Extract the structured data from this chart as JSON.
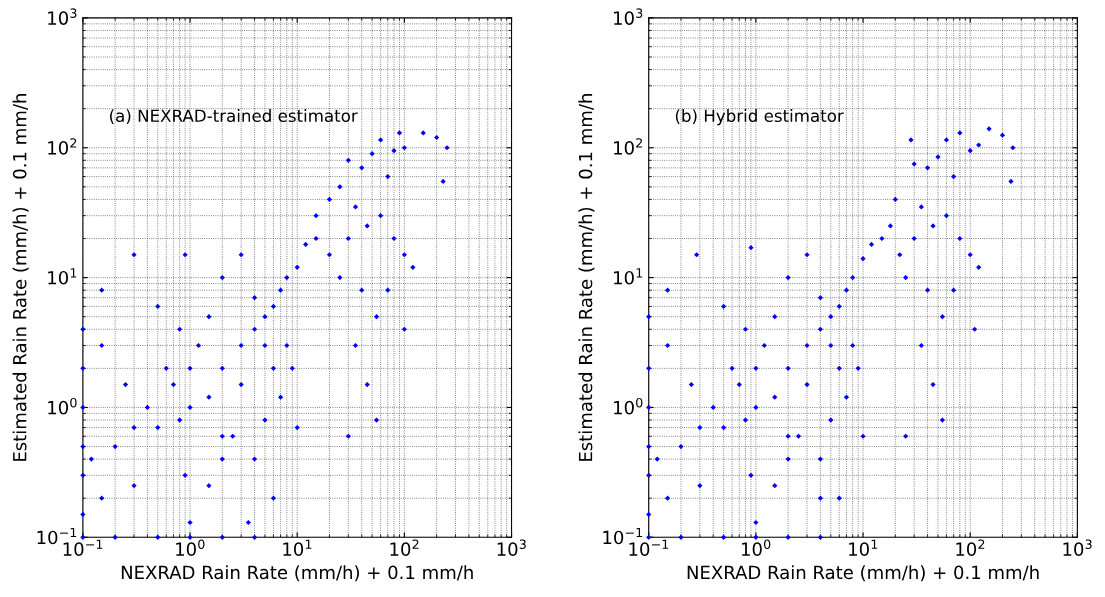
{
  "chart_data": [
    {
      "type": "scatter",
      "xlabel": "NEXRAD Rain Rate (mm/h) + 0.1 mm/h",
      "ylabel": "Estimated Rain Rate (mm/h) + 0.1 mm/h",
      "annotations": [
        "(a) NEXRAD-trained estimator"
      ],
      "log": "xy",
      "grid": true,
      "marker": "diamond",
      "xlim": [
        0.1,
        1000
      ],
      "ylim": [
        0.1,
        1000
      ],
      "xticks": [
        {
          "value": 0.1,
          "label": "10$^{−1}$"
        },
        {
          "value": 1,
          "label": "10$^{0}$"
        },
        {
          "value": 10,
          "label": "10$^{1}$"
        },
        {
          "value": 100,
          "label": "10$^{2}$"
        },
        {
          "value": 1000,
          "label": "10$^{3}$"
        }
      ],
      "yticks": [
        {
          "value": 0.1,
          "label": "10$^{−1}$"
        },
        {
          "value": 1,
          "label": "10$^{0}$"
        },
        {
          "value": 10,
          "label": "10$^{1}$"
        },
        {
          "value": 100,
          "label": "10$^{2}$"
        },
        {
          "value": 1000,
          "label": "10$^{3}$"
        }
      ],
      "series": [
        {
          "color": "#0000ff",
          "x": [
            150,
            200,
            90,
            60,
            100,
            250,
            230,
            80,
            50,
            70,
            40,
            30,
            25,
            20,
            35,
            45,
            60,
            80,
            100,
            120,
            30,
            20,
            15,
            25,
            40,
            55,
            70,
            100,
            35,
            45,
            55,
            30,
            15,
            10,
            12,
            8,
            5,
            6,
            4,
            7,
            5,
            3,
            6,
            8,
            4,
            3,
            2,
            7,
            9,
            10,
            5,
            2.5,
            4,
            6,
            3,
            2,
            1.5,
            1,
            1,
            0.8,
            1.2,
            0.7,
            0.5,
            0.6,
            0.4,
            0.3,
            0.2,
            0.25,
            0.15,
            0.3,
            0.15,
            0.5,
            0.8,
            0.12,
            0.1,
            0.1,
            0.1,
            0.1,
            0.1,
            0.1,
            0.1,
            0.2,
            0.5,
            1,
            2,
            4,
            0.15,
            0.3,
            0.9,
            1.5,
            2,
            1,
            0.9,
            3.5,
            2,
            1.5
          ],
          "values": [
            130,
            120,
            130,
            115,
            100,
            100,
            55,
            95,
            90,
            60,
            70,
            80,
            50,
            40,
            35,
            25,
            30,
            20,
            15,
            12,
            20,
            15,
            20,
            10,
            8,
            5,
            8,
            4,
            3,
            1.5,
            0.8,
            0.6,
            30,
            12,
            18,
            10,
            5,
            6,
            4,
            8,
            3,
            3,
            2,
            3,
            7,
            1.5,
            2,
            1.2,
            2,
            0.7,
            0.8,
            0.6,
            0.4,
            0.2,
            15,
            10,
            5,
            2,
            1,
            0.8,
            3,
            1.5,
            0.7,
            2,
            1,
            0.7,
            0.5,
            1.5,
            3,
            15,
            8,
            6,
            4,
            0.4,
            1,
            0.5,
            2,
            0.3,
            0.15,
            4,
            0.1,
            0.1,
            0.1,
            0.1,
            0.1,
            0.1,
            0.2,
            0.25,
            0.3,
            0.25,
            0.4,
            0.13,
            15,
            0.13,
            0.6,
            1.2
          ]
        }
      ]
    },
    {
      "type": "scatter",
      "xlabel": "NEXRAD Rain Rate (mm/h) + 0.1 mm/h",
      "ylabel": "Estimated Rain Rate (mm/h) + 0.1 mm/h",
      "annotations": [
        "(b) Hybrid estimator"
      ],
      "log": "xy",
      "grid": true,
      "marker": "diamond",
      "xlim": [
        0.1,
        1000
      ],
      "ylim": [
        0.1,
        1000
      ],
      "xticks": [
        {
          "value": 0.1,
          "label": "10$^{−1}$"
        },
        {
          "value": 1,
          "label": "10$^{0}$"
        },
        {
          "value": 10,
          "label": "10$^{1}$"
        },
        {
          "value": 100,
          "label": "10$^{2}$"
        },
        {
          "value": 1000,
          "label": "10$^{3}$"
        }
      ],
      "yticks": [
        {
          "value": 0.1,
          "label": "10$^{−1}$"
        },
        {
          "value": 1,
          "label": "10$^{0}$"
        },
        {
          "value": 10,
          "label": "10$^{1}$"
        },
        {
          "value": 100,
          "label": "10$^{2}$"
        },
        {
          "value": 1000,
          "label": "10$^{3}$"
        }
      ],
      "series": [
        {
          "color": "#0000ff",
          "x": [
            150,
            200,
            80,
            60,
            120,
            250,
            240,
            100,
            50,
            70,
            40,
            30,
            28,
            20,
            35,
            45,
            60,
            80,
            100,
            120,
            30,
            22,
            15,
            25,
            40,
            55,
            70,
            110,
            35,
            45,
            55,
            25,
            18,
            10,
            12,
            8,
            5,
            6,
            4,
            7,
            5,
            3,
            6,
            8,
            4,
            3,
            2,
            7,
            9,
            10,
            5,
            2.5,
            4,
            6,
            3,
            2,
            1.5,
            1,
            1,
            0.8,
            1.2,
            0.7,
            0.5,
            0.6,
            0.4,
            0.3,
            0.2,
            0.25,
            0.15,
            0.28,
            0.15,
            0.5,
            0.8,
            0.12,
            0.1,
            0.1,
            0.1,
            0.1,
            0.1,
            0.1,
            0.1,
            0.2,
            0.5,
            1,
            2,
            4,
            0.15,
            0.3,
            0.9,
            1.5,
            2,
            1,
            0.9,
            4,
            2,
            1.5
          ],
          "values": [
            140,
            125,
            130,
            115,
            105,
            100,
            55,
            95,
            85,
            60,
            70,
            75,
            115,
            40,
            35,
            25,
            30,
            20,
            15,
            12,
            20,
            15,
            20,
            10,
            8,
            5,
            8,
            4,
            3,
            1.5,
            0.8,
            0.6,
            25,
            14,
            18,
            10,
            5,
            6,
            4,
            8,
            3,
            3,
            2,
            3,
            7,
            1.5,
            2,
            1.2,
            2,
            0.6,
            0.8,
            0.6,
            0.4,
            0.2,
            15,
            10,
            5,
            2,
            1,
            0.8,
            3,
            1.5,
            0.7,
            2,
            1,
            0.7,
            0.5,
            1.5,
            3,
            15,
            8,
            6,
            4,
            0.4,
            1,
            0.5,
            2,
            0.3,
            0.15,
            5,
            0.1,
            0.1,
            0.1,
            0.1,
            0.1,
            0.1,
            0.2,
            0.25,
            0.3,
            0.25,
            0.4,
            0.13,
            17,
            0.2,
            0.6,
            1.2
          ]
        }
      ]
    }
  ]
}
